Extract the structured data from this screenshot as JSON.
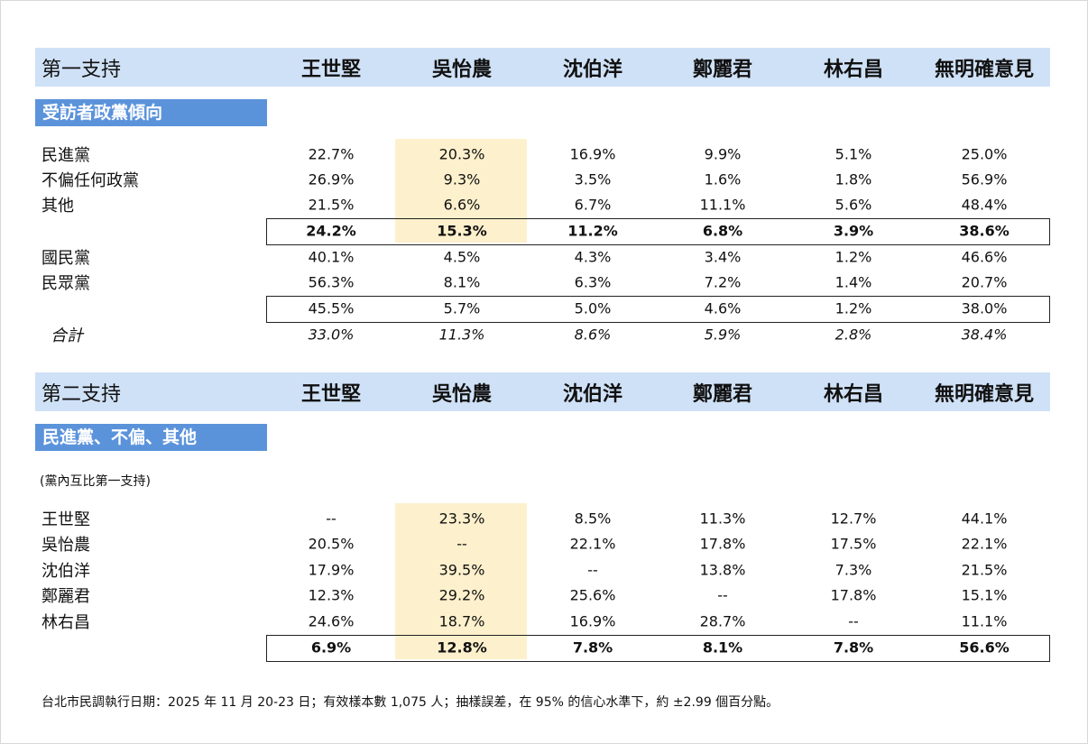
{
  "section1": {
    "header": [
      "第一支持",
      "王世堅",
      "吳怡農",
      "沈伯洋",
      "鄭麗君",
      "林右昌",
      "無明確意見"
    ],
    "tag": "受訪者政黨傾向",
    "rows": [
      {
        "label": "民進黨",
        "values": [
          "22.7%",
          "20.3%",
          "16.9%",
          "9.9%",
          "5.1%",
          "25.0%"
        ]
      },
      {
        "label": "不偏任何政黨",
        "values": [
          "26.9%",
          "9.3%",
          "3.5%",
          "1.6%",
          "1.8%",
          "56.9%"
        ]
      },
      {
        "label": "其他",
        "values": [
          "21.5%",
          "6.6%",
          "6.7%",
          "11.1%",
          "5.6%",
          "48.4%"
        ]
      },
      {
        "values": [
          "24.2%",
          "15.3%",
          "11.2%",
          "6.8%",
          "3.9%",
          "38.6%"
        ]
      },
      {
        "label": "國民黨",
        "values": [
          "40.1%",
          "4.5%",
          "4.3%",
          "3.4%",
          "1.2%",
          "46.6%"
        ]
      },
      {
        "label": "民眾黨",
        "values": [
          "56.3%",
          "8.1%",
          "6.3%",
          "7.2%",
          "1.4%",
          "20.7%"
        ]
      },
      {
        "values": [
          "45.5%",
          "5.7%",
          "5.0%",
          "4.6%",
          "1.2%",
          "38.0%"
        ]
      },
      {
        "label": "合計",
        "values": [
          "33.0%",
          "11.3%",
          "8.6%",
          "5.9%",
          "2.8%",
          "38.4%"
        ]
      }
    ]
  },
  "section2": {
    "header": [
      "第二支持",
      "王世堅",
      "吳怡農",
      "沈伯洋",
      "鄭麗君",
      "林右昌",
      "無明確意見"
    ],
    "tag": "民進黨、不偏、其他",
    "note": "(黨內互比第一支持)",
    "rows": [
      {
        "label": "王世堅",
        "values": [
          "--",
          "23.3%",
          "8.5%",
          "11.3%",
          "12.7%",
          "44.1%"
        ]
      },
      {
        "label": "吳怡農",
        "values": [
          "20.5%",
          "--",
          "22.1%",
          "17.8%",
          "17.5%",
          "22.1%"
        ]
      },
      {
        "label": "沈伯洋",
        "values": [
          "17.9%",
          "39.5%",
          "--",
          "13.8%",
          "7.3%",
          "21.5%"
        ]
      },
      {
        "label": "鄭麗君",
        "values": [
          "12.3%",
          "29.2%",
          "25.6%",
          "--",
          "17.8%",
          "15.1%"
        ]
      },
      {
        "label": "林右昌",
        "values": [
          "24.6%",
          "18.7%",
          "16.9%",
          "28.7%",
          "--",
          "11.1%"
        ]
      },
      {
        "values": [
          "6.9%",
          "12.8%",
          "7.8%",
          "8.1%",
          "7.8%",
          "56.6%"
        ]
      }
    ]
  },
  "footnote": "台北市民調執行日期：2025 年 11 月 20-23 日；有效樣本數 1,075 人；抽樣誤差，在 95% 的信心水準下，約 ±2.99 個百分點。"
}
